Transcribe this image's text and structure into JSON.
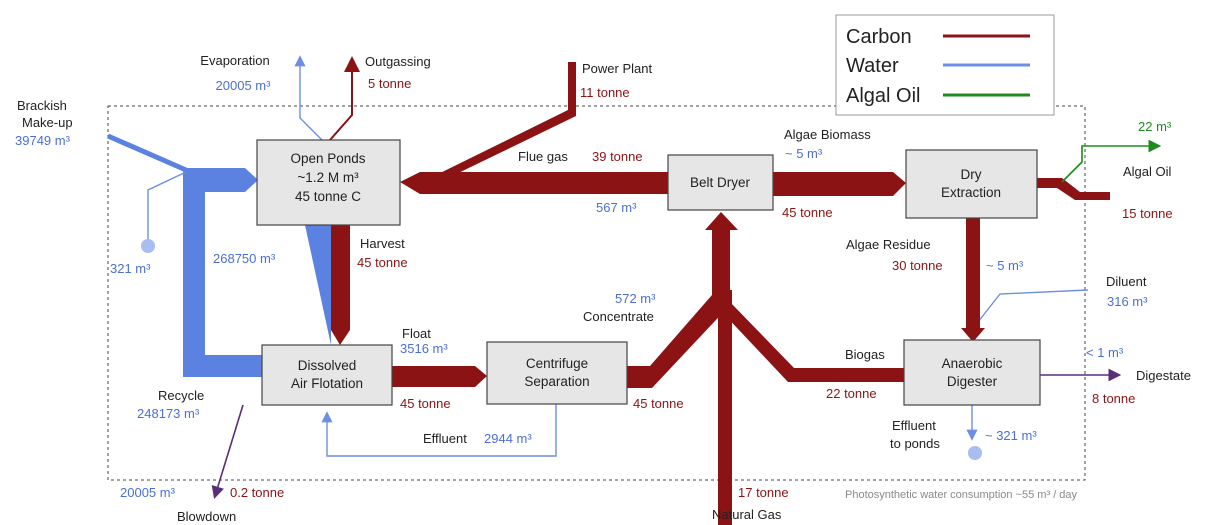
{
  "legend": [
    {
      "label": "Carbon",
      "color": "#8b1313"
    },
    {
      "label": "Water",
      "color": "#6d8fe3"
    },
    {
      "label": "Algal Oil",
      "color": "#1f8a1f"
    }
  ],
  "nodes": [
    {
      "lines": [
        "Open Ponds",
        "~1.2 M m³",
        "45 tonne C"
      ]
    },
    {
      "lines": [
        "Belt Dryer"
      ]
    },
    {
      "lines": [
        "Dry",
        "Extraction"
      ]
    },
    {
      "lines": [
        "Dissolved",
        "Air Flotation"
      ]
    },
    {
      "lines": [
        "Centrifuge",
        "Separation"
      ]
    },
    {
      "lines": [
        "Anaerobic",
        "Digester"
      ]
    }
  ],
  "flow_labels": [
    "Evaporation",
    "20005 m³",
    "Outgassing",
    "5 tonne",
    "Power Plant",
    "11 tonne",
    "Brackish",
    "Make-up",
    "39749 m³",
    "321 m³",
    "268750 m³",
    "Harvest",
    "45 tonne",
    "Flue gas",
    "39 tonne",
    "567 m³",
    "Algae Biomass",
    "~ 5 m³",
    "45 tonne",
    "22 m³",
    "Algal Oil",
    "15 tonne",
    "Algae Residue",
    "30 tonne",
    "~ 5 m³",
    "Diluent",
    "316 m³",
    "572 m³",
    "Concentrate",
    "Float",
    "3516 m³",
    "45 tonne",
    "45 tonne",
    "Recycle",
    "248173 m³",
    "Effluent",
    "2944 m³",
    "Biogas",
    "22 tonne",
    "< 1 m³",
    "Digestate",
    "8 tonne",
    "Effluent",
    "to ponds",
    "~ 321 m³",
    "20005 m³",
    "0.2 tonne",
    "Blowdown",
    "17 tonne",
    "Natural Gas",
    "Photosynthetic water consumption ~55 m³ / day"
  ]
}
